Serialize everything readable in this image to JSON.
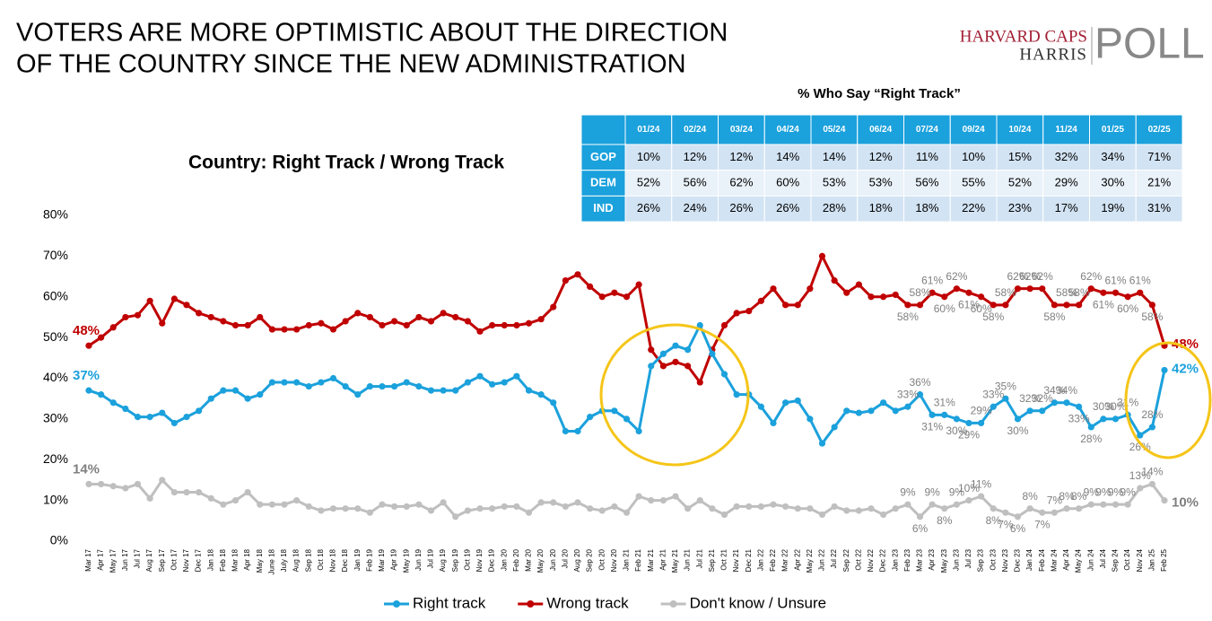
{
  "title": [
    "VOTERS ARE MORE OPTIMISTIC ABOUT THE DIRECTION",
    "OF THE COUNTRY SINCE THE NEW ADMINISTRATION"
  ],
  "logo": {
    "line1": "HARVARD CAPS",
    "line2": "HARRIS",
    "mark": "POLL"
  },
  "table": {
    "title": "% Who Say “Right Track”",
    "columns": [
      "01/24",
      "02/24",
      "03/24",
      "04/24",
      "05/24",
      "06/24",
      "07/24",
      "09/24",
      "10/24",
      "11/24",
      "01/25",
      "02/25"
    ],
    "rows": [
      {
        "label": "GOP",
        "values": [
          "10%",
          "12%",
          "12%",
          "14%",
          "14%",
          "12%",
          "11%",
          "10%",
          "15%",
          "32%",
          "34%",
          "71%"
        ]
      },
      {
        "label": "DEM",
        "values": [
          "52%",
          "56%",
          "62%",
          "60%",
          "53%",
          "53%",
          "56%",
          "55%",
          "52%",
          "29%",
          "30%",
          "21%"
        ]
      },
      {
        "label": "IND",
        "values": [
          "26%",
          "24%",
          "26%",
          "26%",
          "28%",
          "18%",
          "18%",
          "22%",
          "23%",
          "17%",
          "19%",
          "31%"
        ]
      }
    ]
  },
  "chart_data": {
    "type": "line",
    "title": "Country: Right Track / Wrong Track",
    "categories": [
      "Mar 17",
      "Apr 17",
      "May 17",
      "Jun 17",
      "Jul 17",
      "Aug 17",
      "Sep 17",
      "Oct 17",
      "Nov 17",
      "Dec 17",
      "Jan 18",
      "Feb 18",
      "Mar 18",
      "Apr 18",
      "May 18",
      "June 18",
      "July 18",
      "Aug 18",
      "Sep 18",
      "Oct 18",
      "Nov 18",
      "Dec 18",
      "Jan 19",
      "Feb 19",
      "Mar 19",
      "Apr 19",
      "May 19",
      "Jun 19",
      "Jul 19",
      "Aug 19",
      "Sep 19",
      "Oct 19",
      "Nov 19",
      "Dec 19",
      "Jan 20",
      "Feb 20",
      "Mar 20",
      "May 20",
      "Jun 20",
      "Jul 20",
      "Aug 20",
      "Sep 20",
      "Oct 20",
      "Nov 20",
      "Jan 21",
      "Feb 21",
      "Mar 21",
      "Apr 21",
      "May 21",
      "Jun 21",
      "Jul 21",
      "Sep 21",
      "Oct 21",
      "Nov 21",
      "Dec 21",
      "Jan 22",
      "Feb 22",
      "Mar 22",
      "Apr 22",
      "May 22",
      "Jun 22",
      "Jul 22",
      "Sep 22",
      "Oct 22",
      "Nov 22",
      "Dec 22",
      "Jan 23",
      "Feb 23",
      "Mar 23",
      "Apr 23",
      "May 23",
      "Jun 23",
      "Jul 23",
      "Sep 23",
      "Oct 23",
      "Nov 23",
      "Dec 23",
      "Jan 24",
      "Feb 24",
      "Mar 24",
      "Apr 24",
      "May 24",
      "Jun 24",
      "Jul 24",
      "Sep 24",
      "Oct 24",
      "Nov 24",
      "Jan 25",
      "Feb 25"
    ],
    "series": [
      {
        "name": "Right track",
        "color": "#1ba1dc",
        "values": [
          37,
          36,
          34,
          32.5,
          30.5,
          30.5,
          31.5,
          29,
          30.5,
          32,
          35,
          37,
          37,
          35,
          36,
          39,
          39,
          39,
          38,
          39,
          40,
          38,
          36,
          38,
          38,
          38,
          39,
          38,
          37,
          37,
          37,
          39,
          40.5,
          38.5,
          39,
          40.5,
          37,
          36,
          34,
          27,
          27,
          30.5,
          32,
          32,
          30,
          27,
          43,
          46,
          48,
          47,
          53,
          46,
          41,
          36,
          36,
          33,
          29,
          34,
          34.5,
          30,
          24,
          28,
          32,
          31.5,
          32,
          34,
          32,
          33,
          36,
          31,
          31,
          30,
          29,
          29,
          33,
          35,
          30,
          32,
          32,
          34,
          34,
          33,
          28,
          30,
          30,
          31,
          26,
          28,
          42
        ],
        "value_labels": [
          "37%",
          null,
          null,
          null,
          null,
          null,
          null,
          null,
          null,
          null,
          null,
          null,
          null,
          null,
          null,
          null,
          null,
          null,
          null,
          null,
          null,
          null,
          null,
          null,
          null,
          null,
          null,
          null,
          null,
          null,
          null,
          null,
          null,
          null,
          null,
          null,
          null,
          null,
          null,
          null,
          null,
          null,
          null,
          null,
          null,
          null,
          null,
          null,
          null,
          null,
          null,
          null,
          null,
          null,
          null,
          null,
          null,
          null,
          null,
          null,
          null,
          null,
          null,
          null,
          null,
          null,
          null,
          "33%",
          "36%",
          "31%",
          "31%",
          "30%",
          "29%",
          "29%",
          "33%",
          "35%",
          "30%",
          "32%",
          "32%",
          "34%",
          "34%",
          "33%",
          "28%",
          "30%",
          "30%",
          "31%",
          "26%",
          "28%",
          "42%"
        ]
      },
      {
        "name": "Wrong track",
        "color": "#c00000",
        "values": [
          48,
          50,
          52.5,
          55,
          55.5,
          59,
          53.5,
          59.5,
          58,
          56,
          55,
          54,
          53,
          53,
          55,
          52,
          52,
          52,
          53,
          53.5,
          52,
          54,
          56,
          55,
          53,
          54,
          53,
          55,
          54,
          56,
          55,
          54,
          51.5,
          53,
          53,
          53,
          53.5,
          54.5,
          57.5,
          64,
          65.5,
          62.5,
          60,
          61,
          60,
          63,
          47,
          43,
          44,
          43,
          39,
          47,
          53,
          56,
          56.5,
          59,
          62,
          58,
          58,
          62,
          70,
          64,
          61,
          63,
          60,
          60,
          60.5,
          58,
          58,
          61,
          60,
          62,
          61,
          60,
          58,
          58,
          62,
          62,
          62,
          58,
          58,
          58,
          62,
          61,
          61,
          60,
          61,
          58,
          48
        ],
        "value_labels": [
          "48%",
          null,
          null,
          null,
          null,
          null,
          null,
          null,
          null,
          null,
          null,
          null,
          null,
          null,
          null,
          null,
          null,
          null,
          null,
          null,
          null,
          null,
          null,
          null,
          null,
          null,
          null,
          null,
          null,
          null,
          null,
          null,
          null,
          null,
          null,
          null,
          null,
          null,
          null,
          null,
          null,
          null,
          null,
          null,
          null,
          null,
          null,
          null,
          null,
          null,
          null,
          null,
          null,
          null,
          null,
          null,
          null,
          null,
          null,
          null,
          null,
          null,
          null,
          null,
          null,
          null,
          null,
          "58%",
          "58%",
          "61%",
          "60%",
          "62%",
          "61%",
          "60%",
          "58%",
          "58%",
          "62%",
          "62%",
          "62%",
          "58%",
          "58%",
          "58%",
          "62%",
          "61%",
          "61%",
          "60%",
          "61%",
          "58%",
          "48%"
        ]
      },
      {
        "name": "Don't know / Unsure",
        "color": "#bfbfbf",
        "values": [
          14,
          14,
          13.5,
          13,
          14,
          10.5,
          15,
          12,
          12,
          12,
          10.5,
          9,
          10,
          12,
          9,
          9,
          9,
          10,
          8.5,
          7.5,
          8,
          8,
          8,
          7,
          9,
          8.5,
          8.5,
          9,
          7.5,
          9.5,
          6,
          7.5,
          8,
          8,
          8.5,
          8.5,
          7,
          9.5,
          9.5,
          8.5,
          9.5,
          8,
          7.5,
          8.5,
          7,
          11,
          10,
          10,
          11,
          8,
          10,
          8,
          6.5,
          8.5,
          8.5,
          8.5,
          9,
          8.5,
          8,
          8,
          6.5,
          8.5,
          7.5,
          7.5,
          8,
          6.5,
          8,
          9,
          6,
          9,
          8,
          9,
          10,
          11,
          8,
          7,
          6,
          8,
          7,
          7,
          8,
          8,
          9,
          9,
          9,
          9,
          13,
          14,
          10
        ],
        "value_labels": [
          "14%",
          null,
          null,
          null,
          null,
          null,
          null,
          null,
          null,
          null,
          null,
          null,
          null,
          null,
          null,
          null,
          null,
          null,
          null,
          null,
          null,
          null,
          null,
          null,
          null,
          null,
          null,
          null,
          null,
          null,
          null,
          null,
          null,
          null,
          null,
          null,
          null,
          null,
          null,
          null,
          null,
          null,
          null,
          null,
          null,
          null,
          null,
          null,
          null,
          null,
          null,
          null,
          null,
          null,
          null,
          null,
          null,
          null,
          null,
          null,
          null,
          null,
          null,
          null,
          null,
          null,
          null,
          "9%",
          "6%",
          "9%",
          "8%",
          "9%",
          "10%",
          "11%",
          "8%",
          "7%",
          "6%",
          "8%",
          "7%",
          "7%",
          "8%",
          "8%",
          "9%",
          "9%",
          "9%",
          "9%",
          "13%",
          "14%",
          "10%"
        ]
      }
    ],
    "ylim": [
      0,
      80
    ],
    "yticks": [
      {
        "value": 0,
        "label": "0%"
      },
      {
        "value": 10,
        "label": "10%"
      },
      {
        "value": 20,
        "label": "20%"
      },
      {
        "value": 30,
        "label": "30%"
      },
      {
        "value": 40,
        "label": "40%"
      },
      {
        "value": 50,
        "label": "50%"
      },
      {
        "value": 60,
        "label": "60%"
      },
      {
        "value": 70,
        "label": "70%"
      },
      {
        "value": 80,
        "label": "80%"
      }
    ],
    "grid": false,
    "legend": "bottom"
  }
}
